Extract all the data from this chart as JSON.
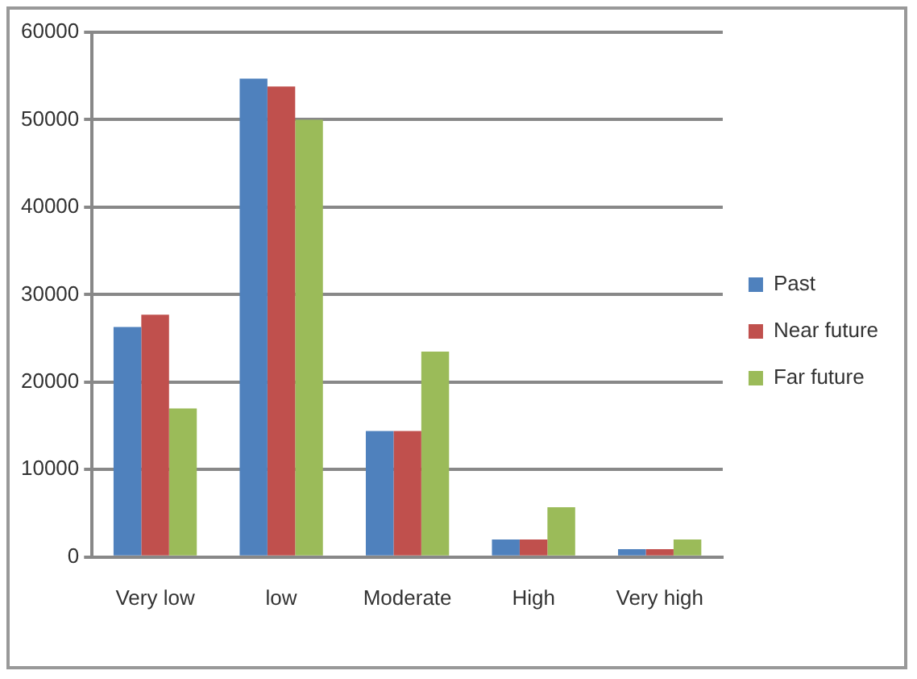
{
  "chart_data": {
    "type": "bar",
    "categories": [
      "Very low",
      "low",
      "Moderate",
      "High",
      "Very high"
    ],
    "series": [
      {
        "name": "Past",
        "color": "#4f81bd",
        "values": [
          26300,
          54700,
          14400,
          2000,
          900
        ]
      },
      {
        "name": "Near future",
        "color": "#c0504d",
        "values": [
          27700,
          53800,
          14400,
          2000,
          900
        ]
      },
      {
        "name": "Far future",
        "color": "#9bbb59",
        "values": [
          17000,
          50000,
          23500,
          5700,
          2000
        ]
      }
    ],
    "ylim": [
      0,
      60000
    ],
    "yticks": [
      0,
      10000,
      20000,
      30000,
      40000,
      50000,
      60000
    ],
    "grid": "y",
    "legend": "right"
  }
}
